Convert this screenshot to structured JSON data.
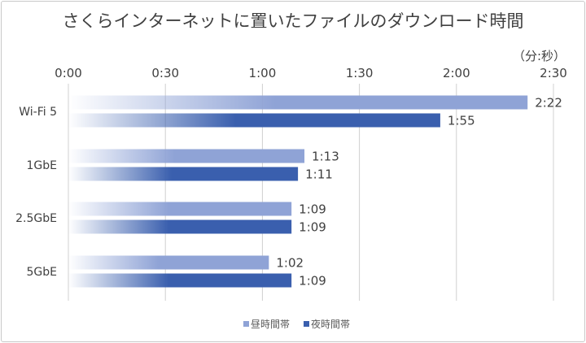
{
  "chart_data": {
    "type": "bar",
    "orientation": "horizontal",
    "title": "さくらインターネットに置いたファイルのダウンロード時間",
    "unit_label": "（分:秒）",
    "categories": [
      "Wi-Fi 5",
      "1GbE",
      "2.5GbE",
      "5GbE"
    ],
    "series": [
      {
        "name": "昼時間帯",
        "color": "#8fa3d6",
        "values_seconds": [
          142,
          73,
          69,
          62
        ],
        "labels": [
          "2:22",
          "1:13",
          "1:09",
          "1:02"
        ]
      },
      {
        "name": "夜時間帯",
        "color": "#3a5fae",
        "values_seconds": [
          115,
          71,
          69,
          69
        ],
        "labels": [
          "1:55",
          "1:11",
          "1:09",
          "1:09"
        ]
      }
    ],
    "x_ticks": [
      "0:00",
      "0:30",
      "1:00",
      "1:30",
      "2:00",
      "2:30"
    ],
    "x_tick_values_seconds": [
      0,
      30,
      60,
      90,
      120,
      150
    ],
    "xlim_seconds": [
      0,
      150
    ],
    "x_axis_position": "top",
    "grid": true,
    "legend_position": "bottom"
  }
}
